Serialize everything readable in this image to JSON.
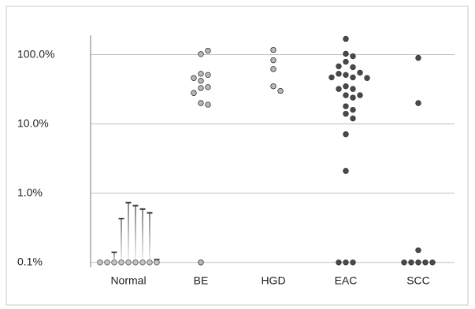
{
  "chart_data": {
    "type": "strip",
    "log_scale": true,
    "ylim": [
      0.085,
      190
    ],
    "yticks": [
      {
        "value": 0.1,
        "label": "0.1%"
      },
      {
        "value": 1,
        "label": "1.0%"
      },
      {
        "value": 10,
        "label": "10.0%"
      },
      {
        "value": 100,
        "label": "100.0%"
      }
    ],
    "grid": true,
    "series": [
      {
        "name": "Normal",
        "color": "#c4c4c4",
        "values": [
          0.1,
          0.1,
          0.1,
          0.1,
          0.1,
          0.1,
          0.1,
          0.1,
          0.1
        ],
        "upper": [
          null,
          null,
          0.14,
          0.43,
          0.73,
          0.66,
          0.59,
          0.52,
          0.11
        ]
      },
      {
        "name": "BE",
        "color": "#b8b8b8",
        "values": [
          102,
          114,
          53,
          51,
          46,
          42,
          34,
          33,
          28,
          20,
          19,
          0.1
        ]
      },
      {
        "name": "HGD",
        "color": "#b8b8b8",
        "values": [
          117,
          83,
          62,
          35,
          30
        ]
      },
      {
        "name": "EAC",
        "color": "#4a4a4a",
        "values": [
          169,
          103,
          95,
          79,
          66,
          68,
          51,
          55,
          53,
          47,
          47,
          46,
          35,
          32,
          32,
          26,
          26,
          24,
          18,
          16,
          14,
          12,
          7.1,
          2.1,
          0.1,
          0.1,
          0.1
        ]
      },
      {
        "name": "SCC",
        "color": "#4a4a4a",
        "values": [
          90,
          20,
          0.15,
          0.1,
          0.1,
          0.1,
          0.1,
          0.1
        ]
      }
    ]
  }
}
